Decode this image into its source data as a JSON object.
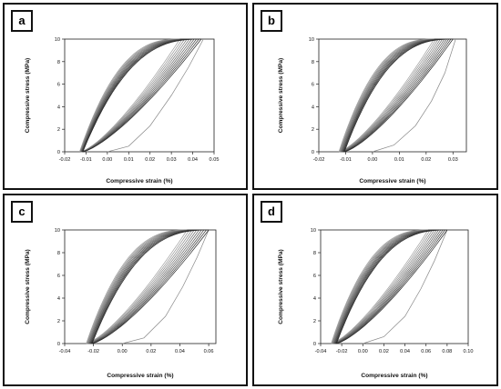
{
  "chart_data": [
    {
      "panel_label": "a",
      "type": "line",
      "xlabel": "Compressive strain (%)",
      "ylabel": "Compressive stress (MPa)",
      "xlim": [
        -0.02,
        0.05
      ],
      "ylim": [
        0,
        10
      ],
      "xticks": [
        "-0.02",
        "-0.01",
        "0.00",
        "0.01",
        "0.02",
        "0.03",
        "0.04",
        "0.05"
      ],
      "yticks": [
        "0",
        "2",
        "4",
        "6",
        "8",
        "10"
      ],
      "peak_stress": 10,
      "first_loading": [
        [
          0.0,
          0
        ],
        [
          0.01,
          0.5
        ],
        [
          0.02,
          2.3
        ],
        [
          0.03,
          5.0
        ],
        [
          0.038,
          7.5
        ],
        [
          0.045,
          10
        ]
      ],
      "reload_start_strain": [
        -0.0125,
        -0.0115
      ],
      "reload_peak_strain": [
        0.034,
        0.044
      ],
      "unload_end_strain": [
        -0.013,
        -0.0115
      ],
      "cycles": 10
    },
    {
      "panel_label": "b",
      "type": "line",
      "xlabel": "Compressive strain (%)",
      "ylabel": "Compressive stress (MPa)",
      "xlim": [
        -0.02,
        0.035
      ],
      "ylim": [
        0,
        10
      ],
      "xticks": [
        "-0.02",
        "-0.01",
        "0.00",
        "0.01",
        "0.02",
        "0.03"
      ],
      "yticks": [
        "0",
        "2",
        "4",
        "6",
        "8",
        "10"
      ],
      "peak_stress": 10,
      "first_loading": [
        [
          0.0,
          0
        ],
        [
          0.008,
          0.6
        ],
        [
          0.016,
          2.3
        ],
        [
          0.022,
          4.5
        ],
        [
          0.027,
          7.0
        ],
        [
          0.031,
          10
        ]
      ],
      "reload_start_strain": [
        -0.0125,
        -0.0105
      ],
      "reload_peak_strain": [
        0.023,
        0.03
      ],
      "unload_end_strain": [
        -0.0125,
        -0.0105
      ],
      "cycles": 10
    },
    {
      "panel_label": "c",
      "type": "line",
      "xlabel": "Compressive strain (%)",
      "ylabel": "Compressive stress (MPa)",
      "xlim": [
        -0.04,
        0.065
      ],
      "ylim": [
        0,
        10
      ],
      "xticks": [
        "-0.04",
        "-0.02",
        "0.00",
        "0.02",
        "0.04",
        "0.06"
      ],
      "yticks": [
        "0",
        "2",
        "4",
        "6",
        "8",
        "10"
      ],
      "peak_stress": 10,
      "first_loading": [
        [
          0.0,
          0
        ],
        [
          0.015,
          0.5
        ],
        [
          0.03,
          2.4
        ],
        [
          0.042,
          5.0
        ],
        [
          0.052,
          7.6
        ],
        [
          0.06,
          10
        ]
      ],
      "reload_start_strain": [
        -0.025,
        -0.021
      ],
      "reload_peak_strain": [
        0.045,
        0.06
      ],
      "unload_end_strain": [
        -0.025,
        -0.021
      ],
      "cycles": 10
    },
    {
      "panel_label": "d",
      "type": "line",
      "xlabel": "Compressive strain (%)",
      "ylabel": "Compressive stress (MPa)",
      "xlim": [
        -0.04,
        0.1
      ],
      "ylim": [
        0,
        10
      ],
      "xticks": [
        "-0.04",
        "-0.02",
        "0.00",
        "0.02",
        "0.04",
        "0.06",
        "0.08",
        "0.10"
      ],
      "yticks": [
        "0",
        "2",
        "4",
        "6",
        "8",
        "10"
      ],
      "peak_stress": 10,
      "first_loading": [
        [
          0.0,
          0
        ],
        [
          0.02,
          0.6
        ],
        [
          0.04,
          2.4
        ],
        [
          0.055,
          4.8
        ],
        [
          0.068,
          7.3
        ],
        [
          0.08,
          10
        ]
      ],
      "reload_start_strain": [
        -0.03,
        -0.025
      ],
      "reload_peak_strain": [
        0.062,
        0.08
      ],
      "unload_end_strain": [
        -0.03,
        -0.025
      ],
      "cycles": 10
    }
  ]
}
